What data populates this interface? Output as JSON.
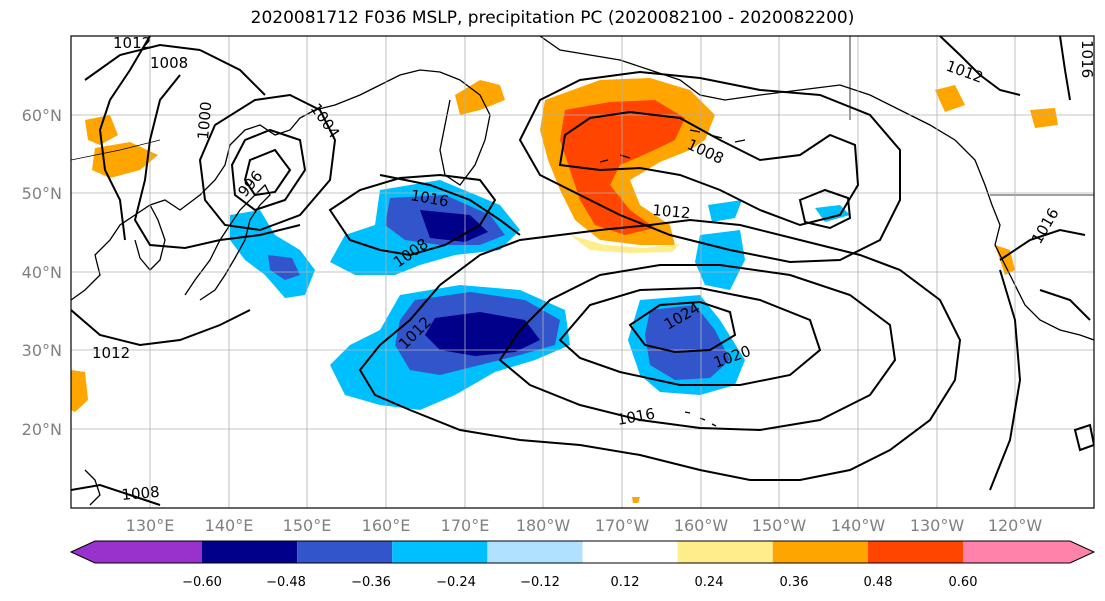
{
  "title": "2020081712 F036 MSLP, precipitation PC (2020082100 - 2020082200)",
  "map": {
    "lat_labels": [
      "60°N",
      "50°N",
      "40°N",
      "30°N",
      "20°N"
    ],
    "lon_labels": [
      "130°E",
      "140°E",
      "150°E",
      "160°E",
      "170°E",
      "180°W",
      "170°W",
      "160°W",
      "150°W",
      "140°W",
      "130°W",
      "120°W"
    ],
    "lon_range_text": [
      "120°E",
      "110°W"
    ],
    "lat_range": [
      10,
      70
    ],
    "isobar_labels": [
      "1012",
      "1008",
      "1004",
      "1000",
      "996",
      "1012",
      "1016",
      "1016",
      "1008",
      "1012",
      "1012",
      "1024",
      "1020",
      "1016",
      "1008",
      "1012",
      "1016",
      "1008"
    ]
  },
  "colorbar": {
    "tick_labels": [
      "−0.60",
      "−0.48",
      "−0.36",
      "−0.24",
      "−0.12",
      "0.12",
      "0.24",
      "0.36",
      "0.48",
      "0.60"
    ],
    "bins": [
      {
        "color": "#9932cc"
      },
      {
        "color": "#00008b"
      },
      {
        "color": "#3355cc"
      },
      {
        "color": "#00bfff"
      },
      {
        "color": "#b0e2ff"
      },
      {
        "color": "#ffffff"
      },
      {
        "color": "#ffec8b"
      },
      {
        "color": "#ffa500"
      },
      {
        "color": "#ff4500"
      },
      {
        "color": "#b22222"
      },
      {
        "color": "#ff82ab"
      }
    ]
  },
  "colors": {
    "neg_dark": "#00008b",
    "neg_mid": "#3355cc",
    "neg_light": "#00bfff",
    "neg_pale": "#b0e2ff",
    "pos_yellow": "#ffec8b",
    "pos_orange": "#ffa500",
    "pos_red": "#ff4500",
    "pos_dark": "#b22222",
    "pos_pink": "#ff82ab",
    "neg_purple": "#9932cc"
  }
}
